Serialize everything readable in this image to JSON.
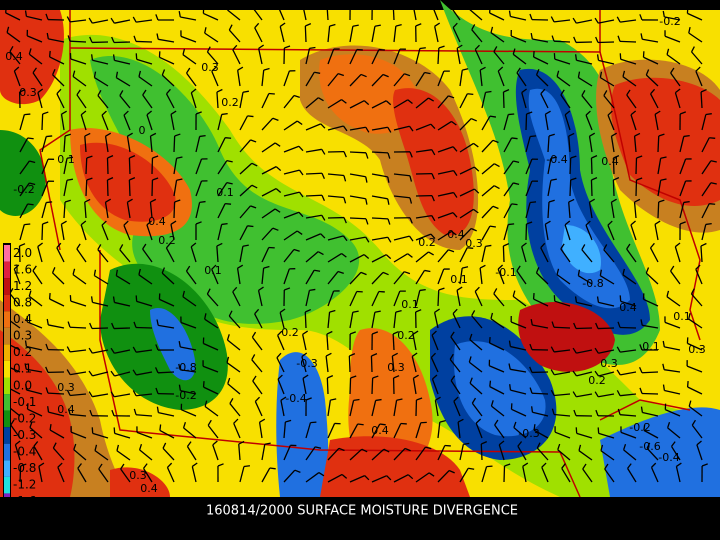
{
  "caption": "160814/2000 SURFACE MOISTURE DIVERGENCE",
  "legend": [
    {
      "label": "2.0",
      "color": "#ff6fa0"
    },
    {
      "label": "1.6",
      "color": "#e02040"
    },
    {
      "label": "1.2",
      "color": "#c01010"
    },
    {
      "label": "0.8",
      "color": "#e03010"
    },
    {
      "label": "0.4",
      "color": "#f07010"
    },
    {
      "label": "0.3",
      "color": "#c88020"
    },
    {
      "label": "0.2",
      "color": "#f0b000"
    },
    {
      "label": "0.1",
      "color": "#f8e000"
    },
    {
      "label": "0.0",
      "color": "#a0e000"
    },
    {
      "label": "-0.1",
      "color": "#40c030"
    },
    {
      "label": "-0.2",
      "color": "#109010"
    },
    {
      "label": "-0.3",
      "color": "#0040a0"
    },
    {
      "label": "-0.4",
      "color": "#2070e0"
    },
    {
      "label": "-0.8",
      "color": "#40b0ff"
    },
    {
      "label": "-1.2",
      "color": "#20e0e0"
    },
    {
      "label": "-1.6",
      "color": "#8020c0"
    }
  ],
  "contour_labels": [
    "-0.2",
    "0.4",
    "0.3",
    "0.3",
    "0.2",
    "0",
    "0.1",
    "-0.2",
    "0.1",
    "0.4",
    "0.2",
    "0.1",
    "-0.4",
    "0.4",
    "0.2",
    "0.4",
    "0.3",
    "0.1",
    "-0.1",
    "-0.8",
    "0.4",
    "0.1",
    "0.2",
    "0.2",
    "-0.8",
    "-0.3",
    "0.3",
    "-0.4",
    "-0.2",
    "0.3",
    "0.4",
    "0.4",
    "-0.3",
    "0.3",
    "0.2",
    "0.1",
    "0.3",
    "-0.2",
    "-0.6",
    "-0.4",
    "0.4",
    "0.3",
    "0.1"
  ]
}
